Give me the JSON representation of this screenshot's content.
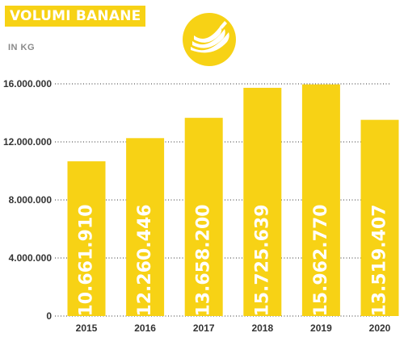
{
  "header": {
    "title": "VOLUMI BANANE",
    "unit": "IN KG"
  },
  "colors": {
    "accent": "#f7d215",
    "grid": "#333333",
    "label_text": "#ffffff"
  },
  "icon": "banana-bunch-icon",
  "chart_data": {
    "type": "bar",
    "title": "VOLUMI BANANE",
    "ylabel": "IN KG",
    "xlabel": "",
    "categories": [
      "2015",
      "2016",
      "2017",
      "2018",
      "2019",
      "2020"
    ],
    "values": [
      10661910,
      12260446,
      13658200,
      15725639,
      15962770,
      13519407
    ],
    "data_labels": [
      "10.661.910",
      "12.260.446",
      "13.658.200",
      "15.725.639",
      "15.962.770",
      "13.519.407"
    ],
    "yticks": [
      0,
      4000000,
      8000000,
      12000000,
      16000000
    ],
    "ytick_labels": [
      "0",
      "4.000.000",
      "8.000.000",
      "12.000.000",
      "16.000.000"
    ],
    "ylim": [
      0,
      16000000
    ],
    "grid": true,
    "legend": "none"
  }
}
